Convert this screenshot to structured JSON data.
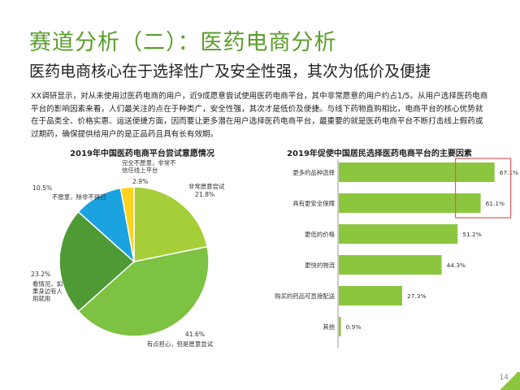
{
  "header": {
    "title": "赛道分析（二）：医药电商分析",
    "subtitle": "医药电商核心在于选择性广及安全性强，其次为低价及便捷"
  },
  "intro": {
    "text": "XX调研显示，对从未使用过医药电商的用户，近9成愿意尝试使用医药电商平台，其中非常愿意的用户约占1/5。从用户选择医药电商平台的影响因素来看，人们最关注的点在于种类广，安全性强，其次才是低价及便捷。与线下药物直购相比，电商平台的核心优势就在于品类全、价格实惠、运送便捷方面，因而要让更多潜在用户选择医药电商平台，最重要的就是医药电商平台不断打击线上假药或过期药，确保提供给用户的是正品药且具有长有效期。"
  },
  "colors": {
    "accent_green": "#5a9e2a",
    "pie_green_light": "#a6ce39",
    "pie_green_mid": "#7dc242",
    "pie_green_dark": "#4f9a34",
    "pie_blue": "#1aa3e0",
    "pie_yellow": "#ffd21f",
    "bar_green": "#8cc63f",
    "highlight_box": "#e05a5a"
  },
  "chart_data": [
    {
      "type": "pie",
      "title": "2019年中国医药电商平台尝试意愿情况",
      "slices": [
        {
          "label": "非常愿意尝试",
          "value": 21.8,
          "value_label": "21.8%",
          "color": "#a6ce39"
        },
        {
          "label": "有点担心，但是愿意尝试",
          "value": 41.6,
          "value_label": "41.6%",
          "color": "#7dc242"
        },
        {
          "label": "看情况，如果身边有人用就用",
          "value": 23.2,
          "value_label": "23.2%",
          "color": "#4f9a34"
        },
        {
          "label": "不愿意，除非不得已",
          "value": 10.5,
          "value_label": "10.5%",
          "color": "#1aa3e0"
        },
        {
          "label": "完全不愿意，非常不信任线上平台",
          "value": 2.9,
          "value_label": "2.9%",
          "color": "#ffd21f"
        }
      ]
    },
    {
      "type": "bar",
      "orientation": "horizontal",
      "title": "2019年促使中国居民选择医药电商平台的主要因素",
      "categories": [
        "更多的品种选择",
        "具有更安全保障",
        "更低的价格",
        "更快的物流",
        "购买的药品可直接配送",
        "其他"
      ],
      "values": [
        67.1,
        61.1,
        51.2,
        44.3,
        27.3,
        0.9
      ],
      "value_labels": [
        "67.1%",
        "61.1%",
        "51.2%",
        "44.3%",
        "27.3%",
        "0.9%"
      ],
      "highlighted": [
        "更多的品种选择",
        "具有更安全保障"
      ],
      "xlim": [
        0,
        70
      ]
    }
  ],
  "footer": {
    "page": "14"
  }
}
